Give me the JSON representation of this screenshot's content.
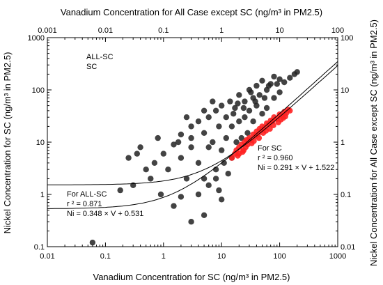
{
  "chart_data": {
    "type": "scatter",
    "title": "",
    "xlabel_bottom": "Vanadium Concentration for SC (ng/m³ in PM2.5)",
    "xlabel_top": "Vanadium Concentration for All Case except SC (ng/m³ in PM2.5)",
    "ylabel_left": "Nickel Concentration for SC (ng/m³ in PM2.5)",
    "ylabel_right": "Nickel Concentration for All Case except SC (ng/m³ in PM2.5)",
    "x_scale": "log",
    "y_scale": "log",
    "bottom_xlim": [
      0.01,
      1000
    ],
    "left_ylim": [
      0.1,
      1000
    ],
    "top_xlim": [
      0.001,
      100
    ],
    "right_ylim": [
      0.01,
      100
    ],
    "bottom_ticks": [
      "0.01",
      "0.1",
      "1",
      "10",
      "100",
      "1000"
    ],
    "left_ticks": [
      "0.1",
      "1",
      "10",
      "100",
      "1000"
    ],
    "top_ticks": [
      "0.001",
      "0.01",
      "0.1",
      "1",
      "10",
      "100"
    ],
    "right_ticks": [
      "0.01",
      "0.1",
      "1",
      "10",
      "100"
    ],
    "grid": false,
    "legend_position": "top-left",
    "series": [
      {
        "name": "ALL-SC",
        "color": "#222222",
        "points": [
          [
            0.06,
            0.12
          ],
          [
            0.25,
            5
          ],
          [
            0.3,
            1.5
          ],
          [
            0.18,
            1.2
          ],
          [
            0.5,
            3
          ],
          [
            0.4,
            8
          ],
          [
            0.7,
            4
          ],
          [
            0.8,
            12
          ],
          [
            1.0,
            6
          ],
          [
            1.2,
            3
          ],
          [
            1.5,
            9
          ],
          [
            2,
            14
          ],
          [
            2,
            5
          ],
          [
            2.5,
            2
          ],
          [
            3,
            20
          ],
          [
            3,
            8
          ],
          [
            4,
            25
          ],
          [
            4,
            4
          ],
          [
            5,
            15
          ],
          [
            5,
            2
          ],
          [
            5,
            0.4
          ],
          [
            6,
            30
          ],
          [
            6,
            8
          ],
          [
            7,
            10
          ],
          [
            8,
            40
          ],
          [
            8,
            3
          ],
          [
            9,
            20
          ],
          [
            10,
            50
          ],
          [
            10,
            7
          ],
          [
            10,
            0.8
          ],
          [
            12,
            30
          ],
          [
            12,
            12
          ],
          [
            14,
            60
          ],
          [
            15,
            20
          ],
          [
            15,
            5
          ],
          [
            17,
            45
          ],
          [
            18,
            10
          ],
          [
            20,
            80
          ],
          [
            20,
            25
          ],
          [
            22,
            12
          ],
          [
            25,
            60
          ],
          [
            25,
            30
          ],
          [
            28,
            15
          ],
          [
            30,
            100
          ],
          [
            30,
            40
          ],
          [
            35,
            70
          ],
          [
            35,
            25
          ],
          [
            40,
            120
          ],
          [
            40,
            50
          ],
          [
            45,
            80
          ],
          [
            50,
            150
          ],
          [
            50,
            35
          ],
          [
            60,
            100
          ],
          [
            60,
            45
          ],
          [
            70,
            130
          ],
          [
            80,
            180
          ],
          [
            80,
            70
          ],
          [
            100,
            160
          ],
          [
            100,
            90
          ],
          [
            120,
            140
          ],
          [
            150,
            170
          ],
          [
            180,
            200
          ],
          [
            200,
            220
          ],
          [
            3,
            0.3
          ],
          [
            4,
            1.0
          ],
          [
            6,
            1.5
          ],
          [
            2,
            0.9
          ],
          [
            1.5,
            0.6
          ],
          [
            8,
            2
          ],
          [
            0.6,
            2
          ],
          [
            0.9,
            1.0
          ],
          [
            1.8,
            10
          ],
          [
            2.5,
            30
          ],
          [
            5,
            40
          ],
          [
            7,
            60
          ],
          [
            3,
            12
          ],
          [
            0.35,
            6
          ],
          [
            11,
            4
          ],
          [
            13,
            2.5
          ],
          [
            9,
            1.2
          ],
          [
            16,
            35
          ],
          [
            19,
            55
          ],
          [
            24,
            45
          ],
          [
            32,
            90
          ],
          [
            38,
            60
          ],
          [
            55,
            70
          ],
          [
            65,
            120
          ],
          [
            90,
            130
          ]
        ]
      },
      {
        "name": "SC",
        "color": "#ff2222",
        "points": [
          [
            15,
            5
          ],
          [
            17,
            6
          ],
          [
            18,
            7
          ],
          [
            20,
            6
          ],
          [
            20,
            8
          ],
          [
            22,
            9
          ],
          [
            24,
            7
          ],
          [
            25,
            10
          ],
          [
            27,
            11
          ],
          [
            28,
            9
          ],
          [
            30,
            12
          ],
          [
            32,
            11
          ],
          [
            35,
            14
          ],
          [
            38,
            13
          ],
          [
            40,
            16
          ],
          [
            42,
            14
          ],
          [
            45,
            18
          ],
          [
            48,
            17
          ],
          [
            50,
            20
          ],
          [
            55,
            19
          ],
          [
            60,
            23
          ],
          [
            65,
            22
          ],
          [
            70,
            26
          ],
          [
            75,
            25
          ],
          [
            80,
            30
          ],
          [
            90,
            28
          ],
          [
            100,
            34
          ],
          [
            110,
            32
          ],
          [
            120,
            38
          ],
          [
            130,
            36
          ],
          [
            140,
            42
          ],
          [
            150,
            40
          ],
          [
            19,
            5.5
          ],
          [
            23,
            6.5
          ],
          [
            26,
            8
          ],
          [
            33,
            9.5
          ],
          [
            36,
            10.5
          ],
          [
            44,
            12
          ],
          [
            52,
            15
          ],
          [
            58,
            16.5
          ],
          [
            68,
            18
          ],
          [
            78,
            21
          ],
          [
            95,
            24
          ],
          [
            105,
            27
          ],
          [
            115,
            29
          ],
          [
            125,
            31
          ]
        ]
      }
    ],
    "lines": [
      {
        "name": "For ALL-SC",
        "slope": 0.348,
        "intercept": 0.531,
        "x_range": [
          0.01,
          1000
        ]
      },
      {
        "name": "For SC",
        "slope": 0.291,
        "intercept": 1.522,
        "x_range": [
          0.01,
          1000
        ]
      }
    ],
    "legend": [
      "ALL-SC",
      "SC"
    ],
    "annotations": {
      "all_sc": {
        "title": "For ALL-SC",
        "r2": "r ² = 0.871",
        "eq": "Ni = 0.348 × V + 0.531"
      },
      "sc": {
        "title": "For SC",
        "r2": "r ² = 0.960",
        "eq": "Ni = 0.291 × V + 1.522"
      }
    }
  }
}
